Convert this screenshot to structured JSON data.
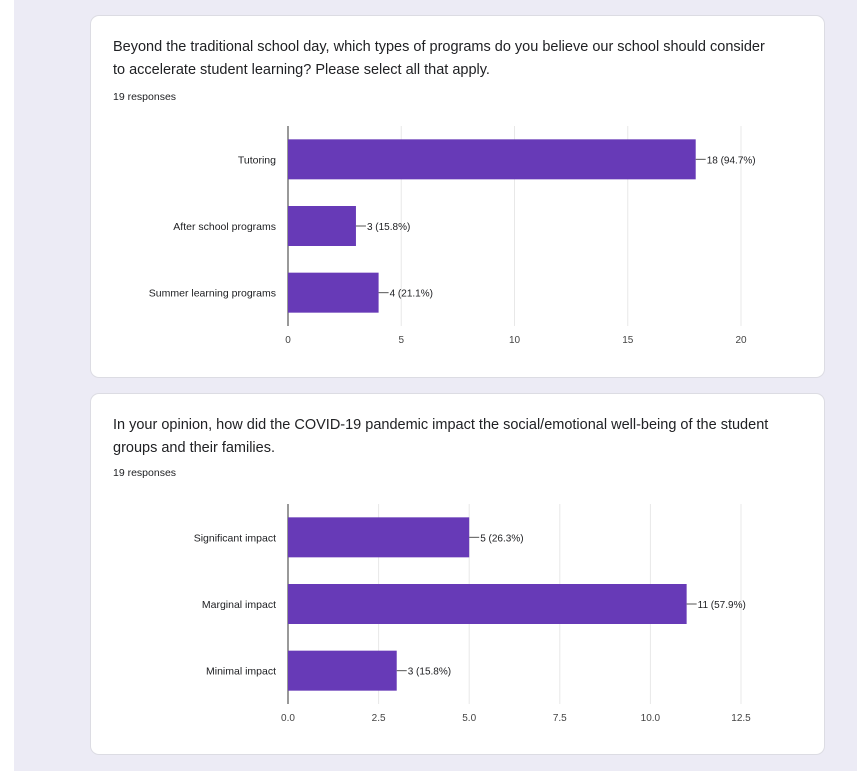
{
  "colors": {
    "bar": "#673ab7",
    "background": "#ecebf5",
    "card": "#ffffff",
    "grid": "#e8e8e8",
    "axis": "#333333"
  },
  "questions": [
    {
      "title": "Beyond the traditional school day, which types of programs do you believe our school should consider to accelerate student learning? Please select all that apply.",
      "responses": "19 responses"
    },
    {
      "title": "In your opinion, how did the COVID-19 pandemic impact the social/emotional well-being of the student groups and their families.",
      "responses": "19 responses"
    }
  ],
  "chart_data": [
    {
      "type": "bar",
      "orientation": "horizontal",
      "categories": [
        "Tutoring",
        "After school programs",
        "Summer learning programs"
      ],
      "values": [
        18,
        3,
        4
      ],
      "data_labels": [
        "18 (94.7%)",
        "3 (15.8%)",
        "4 (21.1%)"
      ],
      "xlim": [
        0,
        20
      ],
      "x_ticks": [
        0,
        5,
        10,
        15,
        20
      ],
      "x_tick_labels": [
        "0",
        "5",
        "10",
        "15",
        "20"
      ],
      "grid": true
    },
    {
      "type": "bar",
      "orientation": "horizontal",
      "categories": [
        "Significant impact",
        "Marginal impact",
        "Minimal impact"
      ],
      "values": [
        5,
        11,
        3
      ],
      "data_labels": [
        "5 (26.3%)",
        "11 (57.9%)",
        "3 (15.8%)"
      ],
      "xlim": [
        0,
        12.5
      ],
      "x_ticks": [
        0,
        2.5,
        5,
        7.5,
        10,
        12.5
      ],
      "x_tick_labels": [
        "0.0",
        "2.5",
        "5.0",
        "7.5",
        "10.0",
        "12.5"
      ],
      "grid": true
    }
  ]
}
